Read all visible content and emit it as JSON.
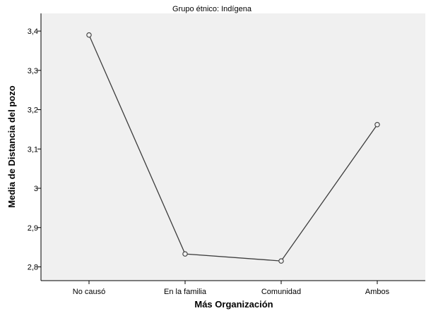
{
  "colors": {
    "plot_background": "#f0f0f0",
    "line": "#3c3c3c",
    "marker_stroke": "#3c3c3c",
    "axis": "#000000"
  },
  "chart_data": {
    "type": "line",
    "title": "Grupo étnico: Indígena",
    "xlabel": "Más Organización",
    "ylabel": "Media de Distancia del pozo",
    "categories": [
      "No causó",
      "En la familia",
      "Comunidad",
      "Ambos"
    ],
    "series": [
      {
        "values": [
          3.39,
          2.833,
          2.815,
          3.162
        ]
      }
    ],
    "ylim": [
      2.765,
      3.445
    ],
    "yticks": [
      2.8,
      2.9,
      3.0,
      3.1,
      3.2,
      3.3,
      3.4
    ],
    "ytick_labels": [
      "2,8",
      "2,9",
      "3",
      "3,1",
      "3,2",
      "3,3",
      "3,4"
    ],
    "grid": false,
    "legend": "none",
    "marker": "open-circle"
  }
}
